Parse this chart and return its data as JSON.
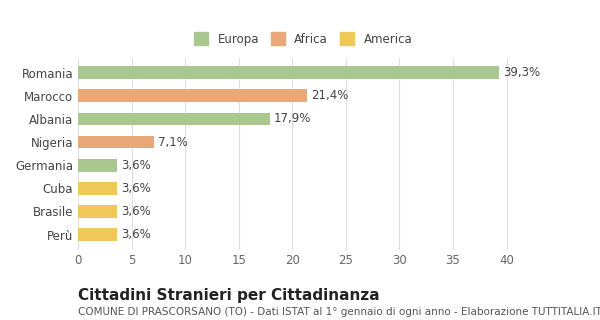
{
  "categories": [
    "Perù",
    "Brasile",
    "Cuba",
    "Germania",
    "Nigeria",
    "Albania",
    "Marocco",
    "Romania"
  ],
  "values": [
    3.6,
    3.6,
    3.6,
    3.6,
    7.1,
    17.9,
    21.4,
    39.3
  ],
  "colors": [
    "#f0c85a",
    "#f0c85a",
    "#f0c85a",
    "#a8c890",
    "#e8a878",
    "#a8c890",
    "#e8a878",
    "#a8c890"
  ],
  "legend": [
    {
      "label": "Europa",
      "color": "#a8c890"
    },
    {
      "label": "Africa",
      "color": "#e8a878"
    },
    {
      "label": "America",
      "color": "#f0c85a"
    }
  ],
  "xlabel": "",
  "xlim": [
    0,
    42
  ],
  "xticks": [
    0,
    5,
    10,
    15,
    20,
    25,
    30,
    35,
    40
  ],
  "title_main": "Cittadini Stranieri per Cittadinanza",
  "title_sub": "COMUNE DI PRASCORSANO (TO) - Dati ISTAT al 1° gennaio di ogni anno - Elaborazione TUTTITALIA.IT",
  "bg_color": "#ffffff",
  "grid_color": "#dddddd",
  "bar_height": 0.55,
  "label_fontsize": 8.5,
  "value_label_fontsize": 8.5,
  "title_fontsize": 11,
  "subtitle_fontsize": 7.5
}
